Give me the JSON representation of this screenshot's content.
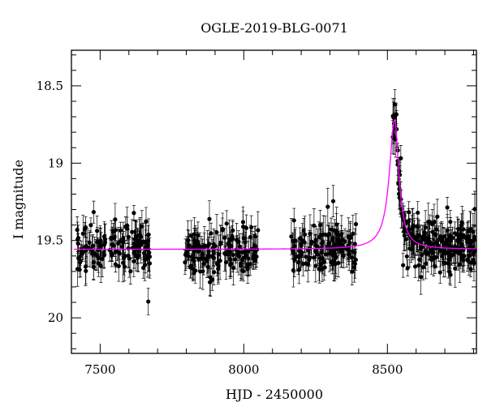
{
  "chart_data": {
    "type": "scatter",
    "title": "OGLE-2019-BLG-0071",
    "xlabel": "HJD - 2450000",
    "ylabel": "I magnitude",
    "xlim": [
      7400,
      8810
    ],
    "ylim": [
      20.23,
      18.27
    ],
    "y_inverted": true,
    "x_ticks": [
      7500,
      8000,
      8500
    ],
    "x_tick_labels": [
      "7500",
      "8000",
      "8500"
    ],
    "y_ticks": [
      18.5,
      19,
      19.5,
      20
    ],
    "y_tick_labels": [
      "18.5",
      "19",
      "19.5",
      "20"
    ],
    "grid": false,
    "legend": "none",
    "colors": {
      "points": "#000000",
      "model": "#ff00ff"
    },
    "series": [
      {
        "kind": "points_with_errorbars",
        "seasons": [
          {
            "x_range": [
              7420,
              7675
            ],
            "mean_mag": 19.55,
            "scatter": 0.13,
            "count": 140
          },
          {
            "x_range": [
              7795,
              8050
            ],
            "mean_mag": 19.57,
            "scatter": 0.13,
            "count": 150
          },
          {
            "x_range": [
              8165,
              8395
            ],
            "mean_mag": 19.55,
            "scatter": 0.12,
            "count": 140
          },
          {
            "x_range": [
              8518,
              8805
            ],
            "mean_mag": "follows model",
            "scatter": 0.13,
            "count": 230
          }
        ]
      },
      {
        "kind": "model_curve",
        "baseline_mag": 19.557,
        "peak_time": 8525,
        "peak_mag": 18.72,
        "rise_timescale_days": 22,
        "decay_timescale_days": 18
      }
    ]
  }
}
